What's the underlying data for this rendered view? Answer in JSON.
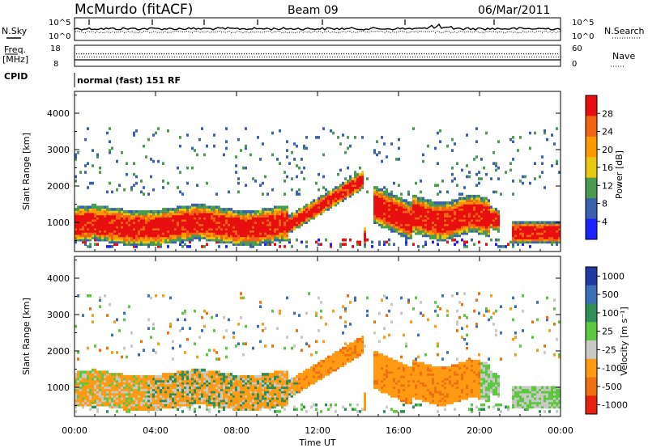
{
  "header": {
    "station": "McMurdo (fitACF)",
    "beam": "Beam 09",
    "date": "06/Mar/2011"
  },
  "status_panels": {
    "nsky_label": "N.Sky",
    "nsearch_label": "N.Search",
    "nsky_ticks": [
      "10^5",
      "10^0"
    ],
    "nsearch_ticks": [
      "10^5",
      "10^0"
    ],
    "freq_label_1": "Freq.",
    "freq_label_2": "[MHz]",
    "freq_ticks": [
      "18",
      "8"
    ],
    "nave_label": "Nave",
    "nave_ticks": [
      "60",
      "0"
    ],
    "cpid_label": "CPID",
    "cpid_text": "normal (fast) 151 RF"
  },
  "chart_data": [
    {
      "type": "heatmap",
      "name": "power-panel",
      "ylabel": "Slant Range [km]",
      "yticks": [
        "1000",
        "2000",
        "3000",
        "4000"
      ],
      "ylim": [
        200,
        4600
      ],
      "xlim_hours": [
        0,
        24
      ],
      "colorbar_label": "Power [dB]",
      "colorbar_ticks": [
        "28",
        "24",
        "20",
        "16",
        "12",
        "8",
        "4"
      ],
      "colorbar_colors": [
        "#e8100e",
        "#f06414",
        "#ff9900",
        "#e8c810",
        "#4a9a50",
        "#3a60b0",
        "#1a22ff"
      ]
    },
    {
      "type": "heatmap",
      "name": "velocity-panel",
      "ylabel": "Slant Range [km]",
      "yticks": [
        "1000",
        "2000",
        "3000",
        "4000"
      ],
      "ylim": [
        200,
        4600
      ],
      "xlim_hours": [
        0,
        24
      ],
      "colorbar_label": "Velocity [m s⁻¹]",
      "colorbar_ticks": [
        "1000",
        "500",
        "100",
        "25",
        "-25",
        "-100",
        "-500",
        "-1000"
      ],
      "colorbar_colors": [
        "#1f3aa0",
        "#3b6fb8",
        "#2f8f58",
        "#5cc840",
        "#c8c8c4",
        "#ff9a12",
        "#f07010",
        "#e82010"
      ]
    }
  ],
  "x_axis": {
    "label": "Time UT",
    "ticks": [
      "00:00",
      "04:00",
      "08:00",
      "12:00",
      "16:00",
      "20:00",
      "00:00"
    ]
  }
}
